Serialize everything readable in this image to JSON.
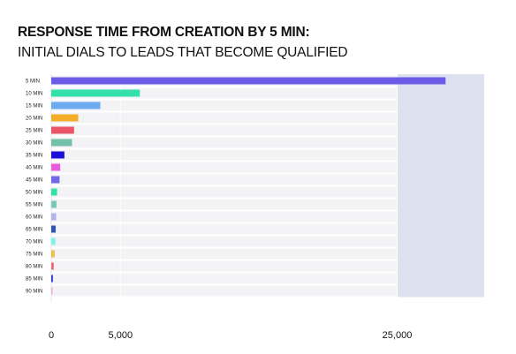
{
  "chart_data": {
    "type": "bar",
    "orientation": "horizontal",
    "title": "RESPONSE TIME FROM CREATION BY 5 MIN:",
    "subtitle": "INITIAL DIALS TO LEADS THAT BECOME QUALIFIED",
    "xlabel": "",
    "ylabel": "",
    "categories": [
      "5 MIN",
      "10 MIN",
      "15 MIN",
      "20 MIN",
      "25 MIN",
      "30 MIN",
      "35 MIN",
      "40 MIN",
      "45 MIN",
      "50 MIN",
      "55 MIN",
      "60 MIN",
      "65 MIN",
      "70 MIN",
      "75 MIN",
      "80 MIN",
      "85 MIN",
      "90 MIN"
    ],
    "values": [
      28500,
      6400,
      3550,
      1950,
      1650,
      1500,
      950,
      650,
      600,
      420,
      380,
      360,
      320,
      300,
      250,
      180,
      120,
      60
    ],
    "colors": [
      "#6b5ce7",
      "#33e0a9",
      "#6aabf2",
      "#f3ad28",
      "#ea5668",
      "#73bfa8",
      "#1b10d8",
      "#e85bdb",
      "#7367e8",
      "#33e0a9",
      "#79c8b6",
      "#b6b1ef",
      "#2f54b3",
      "#7ff0f0",
      "#f3bd55",
      "#ea6a72",
      "#2f3bd1",
      "#f0a8da"
    ],
    "x_ticks": [
      0,
      5000,
      25000
    ],
    "x_tick_labels": [
      "0",
      "5,000",
      "25,000"
    ],
    "xlim": [
      0,
      31500
    ],
    "grid": true
  }
}
